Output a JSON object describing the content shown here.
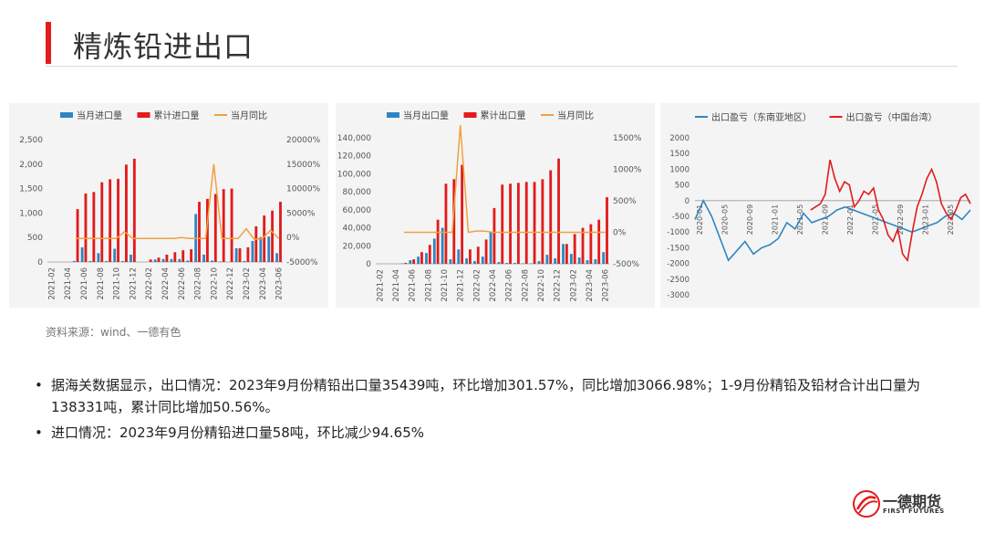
{
  "page": {
    "title": "精炼铅进出口",
    "source": "资料来源：wind、一德有色",
    "bullets": [
      "据海关数据显示，出口情况：2023年9月份精铅出口量35439吨，环比增加301.57%，同比增加3066.98%；1-9月份精铅及铅材合计出口量为138331吨，累计同比增加50.56%。",
      "进口情况：2023年9月份精铅进口量58吨，环比减少94.65%"
    ],
    "logo": {
      "name": "一德期货",
      "sub": "FIRST FUTURES"
    }
  },
  "colors": {
    "accent": "#e21b1b",
    "monthly": "#2e86c1",
    "cumulative": "#e21b1b",
    "yoy": "#f0a040",
    "sea": "#2e86c1",
    "tw": "#e21b1b"
  },
  "chart_data": [
    {
      "type": "bar",
      "x": [
        "2021-02",
        "2021-03",
        "2021-04",
        "2021-05",
        "2021-06",
        "2021-07",
        "2021-08",
        "2021-09",
        "2021-10",
        "2021-11",
        "2021-12",
        "2022-01",
        "2022-02",
        "2022-03",
        "2022-04",
        "2022-05",
        "2022-06",
        "2022-07",
        "2022-08",
        "2022-09",
        "2022-10",
        "2022-11",
        "2022-12",
        "2023-01",
        "2023-02",
        "2023-03",
        "2023-04",
        "2023-05",
        "2023-06"
      ],
      "xticks": [
        "2021-02",
        "2021-04",
        "2021-06",
        "2021-08",
        "2021-10",
        "2021-12",
        "2022-02",
        "2022-04",
        "2022-06",
        "2022-08",
        "2022-10",
        "2022-12",
        "2023-02",
        "2023-04",
        "2023-06"
      ],
      "series": [
        {
          "name": "当月进口量",
          "axis": "left",
          "values": [
            0,
            0,
            0,
            20,
            300,
            20,
            180,
            20,
            270,
            20,
            150,
            0,
            0,
            50,
            60,
            60,
            60,
            30,
            980,
            150,
            30,
            10,
            0,
            280,
            20,
            430,
            510,
            520,
            180
          ]
        },
        {
          "name": "累计进口量",
          "axis": "left",
          "values": [
            0,
            0,
            0,
            1080,
            1400,
            1430,
            1630,
            1690,
            1700,
            1990,
            2110,
            0,
            50,
            90,
            150,
            200,
            240,
            260,
            1230,
            1290,
            1390,
            1490,
            1500,
            280,
            300,
            730,
            950,
            1050,
            1230
          ]
        },
        {
          "name": "当月同比",
          "axis": "right",
          "type": "line",
          "values": [
            null,
            null,
            null,
            -200,
            -200,
            -200,
            -200,
            -200,
            -200,
            1200,
            -200,
            -200,
            -200,
            -200,
            -200,
            -200,
            0,
            -200,
            -200,
            -200,
            15000,
            -200,
            -200,
            -200,
            1800,
            -400,
            -200,
            1500,
            -200
          ]
        }
      ],
      "ylim": [
        0,
        2500
      ],
      "yticks": [
        "0",
        "500",
        "1,000",
        "1,500",
        "2,000",
        "2,500"
      ],
      "y2lim": [
        -5000,
        20000
      ],
      "y2ticks": [
        "-5000%",
        "0%",
        "5000%",
        "10000%",
        "15000%",
        "20000%"
      ]
    },
    {
      "type": "bar",
      "x": [
        "2021-02",
        "2021-03",
        "2021-04",
        "2021-05",
        "2021-06",
        "2021-07",
        "2021-08",
        "2021-09",
        "2021-10",
        "2021-11",
        "2021-12",
        "2022-01",
        "2022-02",
        "2022-03",
        "2022-04",
        "2022-05",
        "2022-06",
        "2022-07",
        "2022-08",
        "2022-09",
        "2022-10",
        "2022-11",
        "2022-12",
        "2023-01",
        "2023-02",
        "2023-03",
        "2023-04",
        "2023-05",
        "2023-06"
      ],
      "xticks": [
        "2021-02",
        "2021-04",
        "2021-06",
        "2021-08",
        "2021-10",
        "2021-12",
        "2022-02",
        "2022-04",
        "2022-06",
        "2022-08",
        "2022-10",
        "2022-12",
        "2023-02",
        "2023-04",
        "2023-06"
      ],
      "series": [
        {
          "name": "当月出口量",
          "axis": "left",
          "values": [
            0,
            0,
            0,
            500,
            4000,
            8000,
            12000,
            28000,
            40000,
            5000,
            16000,
            6000,
            3000,
            8000,
            35000,
            2000,
            1000,
            1000,
            500,
            500,
            3000,
            10000,
            6000,
            22000,
            11000,
            7000,
            4000,
            5000,
            13000
          ]
        },
        {
          "name": "累计出口量",
          "axis": "left",
          "values": [
            0,
            0,
            0,
            1000,
            5000,
            13000,
            21000,
            49000,
            89000,
            94000,
            110000,
            16000,
            19000,
            27000,
            62000,
            88000,
            89000,
            90000,
            91000,
            91000,
            94000,
            104000,
            117000,
            22000,
            33000,
            40000,
            44000,
            49000,
            74000
          ]
        },
        {
          "name": "当月同比",
          "axis": "right",
          "type": "line",
          "values": [
            null,
            null,
            null,
            0,
            0,
            0,
            0,
            0,
            0,
            0,
            1700,
            0,
            20,
            20,
            0,
            0,
            0,
            0,
            0,
            0,
            0,
            0,
            0,
            0,
            0,
            0,
            0,
            0,
            0
          ]
        }
      ],
      "ylim": [
        0,
        140000
      ],
      "yticks": [
        "0",
        "20,000",
        "40,000",
        "60,000",
        "80,000",
        "100,000",
        "120,000",
        "140,000"
      ],
      "y2lim": [
        -500,
        1500
      ],
      "y2ticks": [
        "-500%",
        "0%",
        "500%",
        "1000%",
        "1500%"
      ]
    },
    {
      "type": "line",
      "xticks": [
        "2020-01",
        "2020-05",
        "2020-09",
        "2021-01",
        "2021-05",
        "2021-09",
        "2022-01",
        "2022-05",
        "2022-09",
        "2023-01",
        "2023-05"
      ],
      "series": [
        {
          "name": "出口盈亏（东南亚地区）",
          "values": [
            -600,
            0,
            -500,
            -1200,
            -1900,
            -1600,
            -1300,
            -1700,
            -1500,
            -1400,
            -1200,
            -700,
            -900,
            -400,
            -700,
            -600,
            -500,
            -300,
            -200,
            -300,
            -400,
            -500,
            -600,
            -700,
            -800,
            -900,
            -1000,
            -900,
            -800,
            -700,
            -500,
            -400,
            -600,
            -300
          ]
        },
        {
          "name": "出口盈亏（中国台湾）",
          "values": [
            -300,
            -200,
            -100,
            200,
            1300,
            700,
            300,
            600,
            500,
            -200,
            0,
            300,
            200,
            400,
            -300,
            -600,
            -1100,
            -1300,
            -900,
            -1700,
            -1900,
            -1000,
            -200,
            200,
            700,
            1000,
            600,
            -100,
            -400,
            -600,
            -300,
            100,
            200,
            -100
          ]
        }
      ],
      "ylim": [
        -3000,
        2000
      ],
      "yticks": [
        "-3000",
        "-2500",
        "-2000",
        "-1500",
        "-1000",
        "-500",
        "0",
        "500",
        "1000",
        "1500",
        "2000"
      ]
    }
  ]
}
